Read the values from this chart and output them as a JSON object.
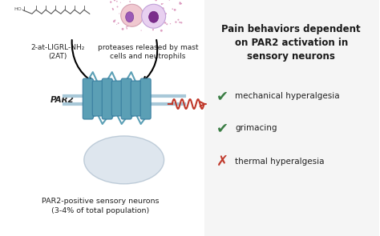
{
  "title_text": "Pain behaviors dependent\non PAR2 activation in\nsensory neurons",
  "label_2at": "2-at-LIGRL-NH₂\n(2AT)",
  "label_proteases": "proteases released by mast\ncells and neutrophils",
  "label_par2": "PAR2",
  "label_neurons": "PAR2-positive sensory neurons\n(3-4% of total population)",
  "check_items": [
    "mechanical hyperalgesia",
    "grimacing"
  ],
  "cross_items": [
    "thermal hyperalgesia"
  ],
  "check_color": "#3a7d44",
  "cross_color": "#c0392b",
  "title_color": "#1a1a1a",
  "arrow_color": "#c0392b",
  "membrane_color": "#5b9fb5",
  "membrane_line_color": "#a8c8d8",
  "bg_color": "#ffffff",
  "cell_color": "#d0dce8",
  "text_color": "#222222"
}
